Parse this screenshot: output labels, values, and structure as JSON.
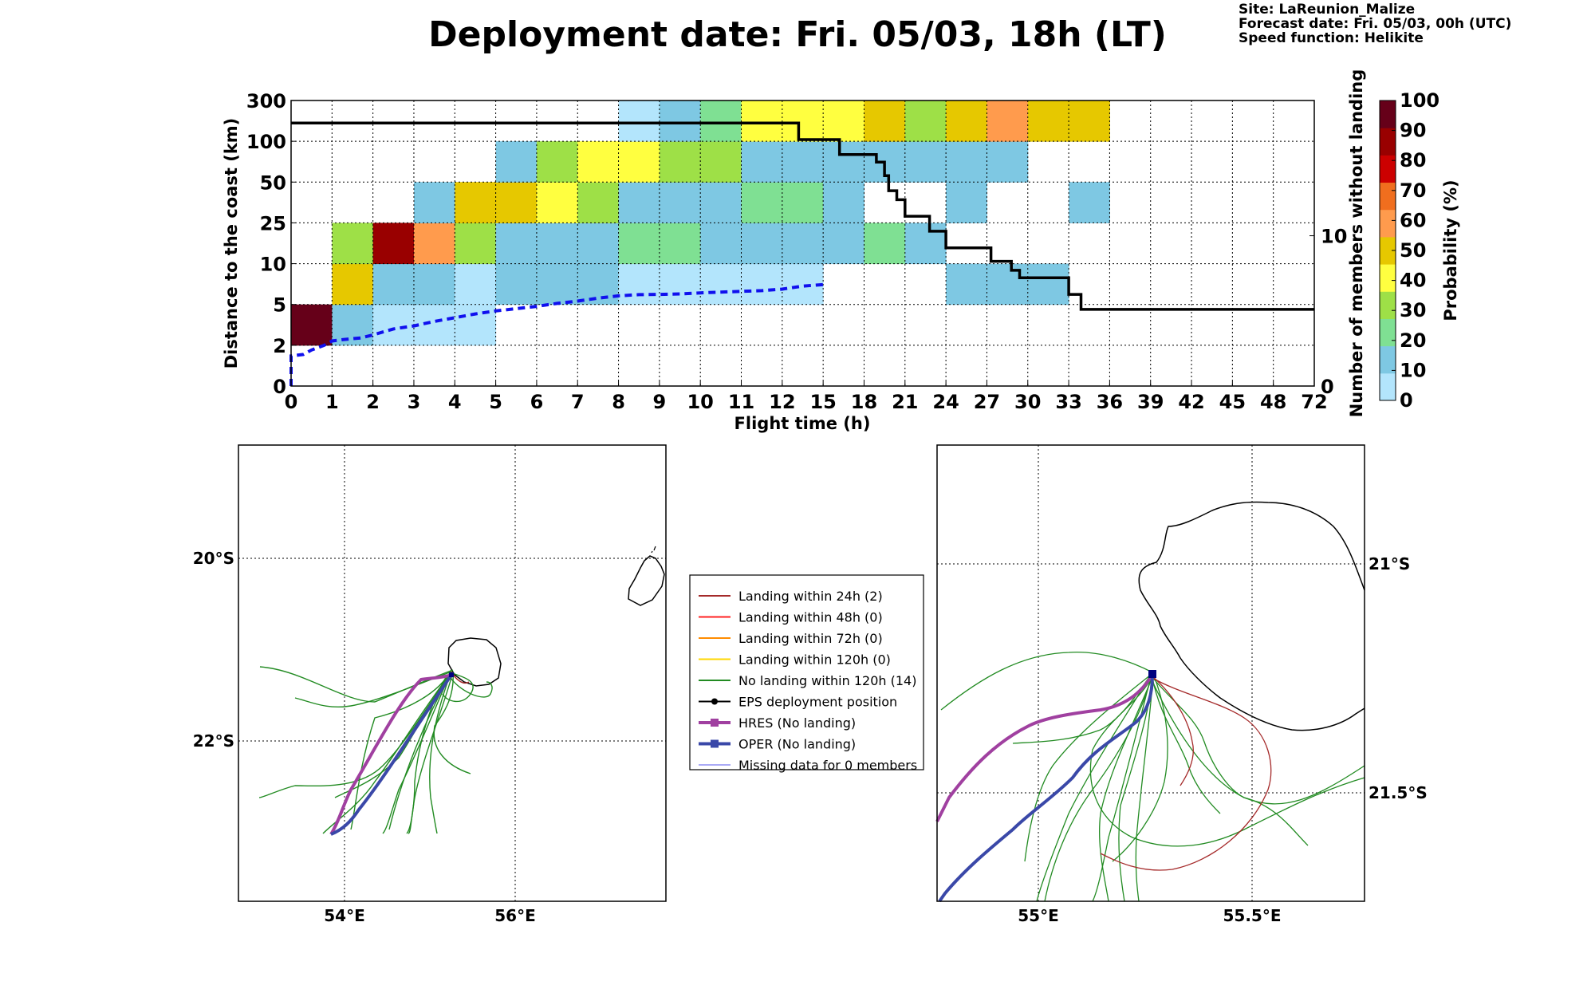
{
  "header": {
    "title": "Deployment date: Fri. 05/03, 18h (LT)",
    "site": "Site: LaReunion_Malize",
    "forecast": "Forecast date: Fri. 05/03, 00h (UTC)",
    "speed": "Speed function: Helikite"
  },
  "chart_data": [
    {
      "type": "heatmap",
      "xlabel": "Flight time (h)",
      "ylabel": "Distance to the coast (km)",
      "y2label": "Number of members without landing",
      "x_categories": [
        "0",
        "1",
        "2",
        "3",
        "4",
        "5",
        "6",
        "7",
        "8",
        "9",
        "10",
        "11",
        "12",
        "15",
        "18",
        "21",
        "24",
        "27",
        "30",
        "33",
        "36",
        "39",
        "42",
        "45",
        "48",
        "72"
      ],
      "y_categories": [
        "0",
        "2",
        "5",
        "10",
        "25",
        "50",
        "100",
        "300"
      ],
      "y2_ticks": [
        {
          "value": 0,
          "label": "0"
        },
        {
          "value": 10,
          "label": "10"
        }
      ],
      "y2_range": [
        0,
        19
      ],
      "colorbar": {
        "label": "Probability (%)",
        "ticks": [
          "0",
          "10",
          "20",
          "30",
          "40",
          "50",
          "60",
          "70",
          "80",
          "90",
          "100"
        ],
        "colors": [
          "#b3e5fc",
          "#7ec8e3",
          "#7fe093",
          "#9ee047",
          "#ffff40",
          "#e6c800",
          "#ff9b4d",
          "#f06e1e",
          "#cc0000",
          "#990000",
          "#660019"
        ]
      },
      "cells": [
        {
          "x": 0,
          "y": 1,
          "p": 100
        },
        {
          "x": 1,
          "y": 1,
          "p": 10
        },
        {
          "x": 2,
          "y": 1,
          "p": 0
        },
        {
          "x": 3,
          "y": 1,
          "p": 0
        },
        {
          "x": 4,
          "y": 1,
          "p": 0
        },
        {
          "x": 1,
          "y": 2,
          "p": 50
        },
        {
          "x": 2,
          "y": 2,
          "p": 10
        },
        {
          "x": 3,
          "y": 2,
          "p": 10
        },
        {
          "x": 4,
          "y": 2,
          "p": 0
        },
        {
          "x": 5,
          "y": 2,
          "p": 10
        },
        {
          "x": 6,
          "y": 2,
          "p": 10
        },
        {
          "x": 7,
          "y": 2,
          "p": 10
        },
        {
          "x": 8,
          "y": 2,
          "p": 0
        },
        {
          "x": 9,
          "y": 2,
          "p": 0
        },
        {
          "x": 10,
          "y": 2,
          "p": 0
        },
        {
          "x": 11,
          "y": 2,
          "p": 0
        },
        {
          "x": 12,
          "y": 2,
          "p": 0
        },
        {
          "x": 16,
          "y": 2,
          "p": 10
        },
        {
          "x": 17,
          "y": 2,
          "p": 10
        },
        {
          "x": 18,
          "y": 2,
          "p": 10
        },
        {
          "x": 1,
          "y": 3,
          "p": 30
        },
        {
          "x": 2,
          "y": 3,
          "p": 90
        },
        {
          "x": 3,
          "y": 3,
          "p": 60
        },
        {
          "x": 4,
          "y": 3,
          "p": 30
        },
        {
          "x": 5,
          "y": 3,
          "p": 10
        },
        {
          "x": 6,
          "y": 3,
          "p": 10
        },
        {
          "x": 7,
          "y": 3,
          "p": 10
        },
        {
          "x": 8,
          "y": 3,
          "p": 20
        },
        {
          "x": 9,
          "y": 3,
          "p": 20
        },
        {
          "x": 10,
          "y": 3,
          "p": 10
        },
        {
          "x": 11,
          "y": 3,
          "p": 10
        },
        {
          "x": 12,
          "y": 3,
          "p": 10
        },
        {
          "x": 13,
          "y": 3,
          "p": 10
        },
        {
          "x": 14,
          "y": 3,
          "p": 20
        },
        {
          "x": 15,
          "y": 3,
          "p": 10
        },
        {
          "x": 3,
          "y": 4,
          "p": 10
        },
        {
          "x": 4,
          "y": 4,
          "p": 50
        },
        {
          "x": 5,
          "y": 4,
          "p": 50
        },
        {
          "x": 6,
          "y": 4,
          "p": 40
        },
        {
          "x": 7,
          "y": 4,
          "p": 30
        },
        {
          "x": 8,
          "y": 4,
          "p": 10
        },
        {
          "x": 9,
          "y": 4,
          "p": 10
        },
        {
          "x": 10,
          "y": 4,
          "p": 10
        },
        {
          "x": 11,
          "y": 4,
          "p": 20
        },
        {
          "x": 12,
          "y": 4,
          "p": 20
        },
        {
          "x": 13,
          "y": 4,
          "p": 10
        },
        {
          "x": 16,
          "y": 4,
          "p": 10
        },
        {
          "x": 19,
          "y": 4,
          "p": 10
        },
        {
          "x": 5,
          "y": 5,
          "p": 10
        },
        {
          "x": 6,
          "y": 5,
          "p": 30
        },
        {
          "x": 7,
          "y": 5,
          "p": 40
        },
        {
          "x": 8,
          "y": 5,
          "p": 40
        },
        {
          "x": 9,
          "y": 5,
          "p": 30
        },
        {
          "x": 10,
          "y": 5,
          "p": 30
        },
        {
          "x": 11,
          "y": 5,
          "p": 10
        },
        {
          "x": 12,
          "y": 5,
          "p": 10
        },
        {
          "x": 13,
          "y": 5,
          "p": 10
        },
        {
          "x": 14,
          "y": 5,
          "p": 10
        },
        {
          "x": 15,
          "y": 5,
          "p": 10
        },
        {
          "x": 16,
          "y": 5,
          "p": 10
        },
        {
          "x": 17,
          "y": 5,
          "p": 10
        },
        {
          "x": 8,
          "y": 6,
          "p": 0
        },
        {
          "x": 9,
          "y": 6,
          "p": 10
        },
        {
          "x": 10,
          "y": 6,
          "p": 20
        },
        {
          "x": 11,
          "y": 6,
          "p": 40
        },
        {
          "x": 12,
          "y": 6,
          "p": 40
        },
        {
          "x": 13,
          "y": 6,
          "p": 40
        },
        {
          "x": 14,
          "y": 6,
          "p": 50
        },
        {
          "x": 15,
          "y": 6,
          "p": 30
        },
        {
          "x": 16,
          "y": 6,
          "p": 50
        },
        {
          "x": 17,
          "y": 6,
          "p": 60
        },
        {
          "x": 18,
          "y": 6,
          "p": 50
        },
        {
          "x": 19,
          "y": 6,
          "p": 50
        }
      ],
      "series": [
        {
          "style": "black-solid-step",
          "points": [
            [
              0,
              17.5
            ],
            [
              12.4,
              17.5
            ],
            [
              12.4,
              16.4
            ],
            [
              13.4,
              16.4
            ],
            [
              13.4,
              15.4
            ],
            [
              14.3,
              15.4
            ],
            [
              14.3,
              14.9
            ],
            [
              14.5,
              14.9
            ],
            [
              14.5,
              14.0
            ],
            [
              14.6,
              14.0
            ],
            [
              14.6,
              13.0
            ],
            [
              14.8,
              13.0
            ],
            [
              14.8,
              12.4
            ],
            [
              15.0,
              12.4
            ],
            [
              15.0,
              11.3
            ],
            [
              15.6,
              11.3
            ],
            [
              15.6,
              10.3
            ],
            [
              16.0,
              10.3
            ],
            [
              16.0,
              9.2
            ],
            [
              17.1,
              9.2
            ],
            [
              17.1,
              8.3
            ],
            [
              17.6,
              8.3
            ],
            [
              17.6,
              7.7
            ],
            [
              17.8,
              7.7
            ],
            [
              17.8,
              7.2
            ],
            [
              19.0,
              7.2
            ],
            [
              19.0,
              6.1
            ],
            [
              19.3,
              6.1
            ],
            [
              19.3,
              5.1
            ],
            [
              25,
              5.1
            ]
          ]
        },
        {
          "style": "blue-dashed",
          "points": [
            [
              0,
              0
            ],
            [
              0,
              2.0
            ],
            [
              0.3,
              2.1
            ],
            [
              0.5,
              2.4
            ],
            [
              0.8,
              2.7
            ],
            [
              1,
              3.0
            ],
            [
              1.3,
              3.1
            ],
            [
              1.7,
              3.2
            ],
            [
              2,
              3.4
            ],
            [
              2.5,
              3.8
            ],
            [
              3,
              4.0
            ],
            [
              3.5,
              4.3
            ],
            [
              4,
              4.55
            ],
            [
              4.5,
              4.8
            ],
            [
              5,
              5.0
            ],
            [
              5.5,
              5.15
            ],
            [
              6,
              5.3
            ],
            [
              6.5,
              5.5
            ],
            [
              7,
              5.65
            ],
            [
              7.5,
              5.85
            ],
            [
              8,
              6.0
            ],
            [
              8.5,
              6.08
            ],
            [
              9,
              6.1
            ],
            [
              9.5,
              6.13
            ],
            [
              10,
              6.2
            ],
            [
              10.5,
              6.25
            ],
            [
              11,
              6.3
            ],
            [
              11.5,
              6.35
            ],
            [
              12,
              6.45
            ],
            [
              12.5,
              6.65
            ],
            [
              13,
              6.75
            ]
          ]
        }
      ]
    },
    {
      "type": "map",
      "lon_ticks": [
        "54°E",
        "56°E"
      ],
      "lat_ticks": [
        "20°S",
        "22°S"
      ]
    },
    {
      "type": "map",
      "lon_ticks": [
        "55°E",
        "55.5°E"
      ],
      "lat_ticks": [
        "21°S",
        "21.5°S"
      ]
    }
  ],
  "legend": {
    "entries": [
      {
        "label": "Landing within 24h (2)",
        "color": "#a52a2a",
        "marker": "none",
        "width": 2
      },
      {
        "label": "Landing within 48h (0)",
        "color": "#ff2222",
        "marker": "none",
        "width": 2
      },
      {
        "label": "Landing within 72h (0)",
        "color": "#ff8c00",
        "marker": "none",
        "width": 2
      },
      {
        "label": "Landing within 120h (0)",
        "color": "#ffd700",
        "marker": "none",
        "width": 2
      },
      {
        "label": "No landing within 120h (14)",
        "color": "#228b22",
        "marker": "none",
        "width": 2
      },
      {
        "label": "EPS deployment position",
        "color": "#000000",
        "marker": "circle",
        "width": 2
      },
      {
        "label": "HRES (No landing)",
        "color": "#a040a0",
        "marker": "square",
        "width": 4
      },
      {
        "label": "OPER (No landing)",
        "color": "#3a48a8",
        "marker": "square",
        "width": 4
      },
      {
        "label": "Missing data for 0 members",
        "color": "#5555ee",
        "marker": "none",
        "width": 1
      }
    ]
  }
}
